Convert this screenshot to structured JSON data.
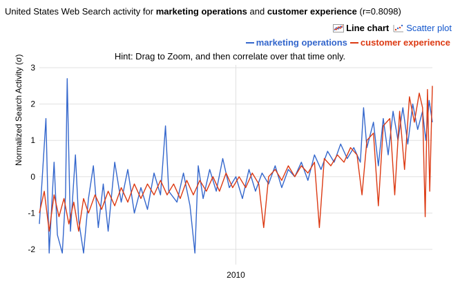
{
  "title": {
    "prefix": "United States Web Search activity for ",
    "term1": "marketing operations",
    "and": " and ",
    "term2": "customer experience",
    "suffix": " (r=0.8098)"
  },
  "view_links": {
    "line_chart": "Line chart",
    "scatter_plot": "Scatter plot"
  },
  "hint": "Hint: Drag to Zoom, and then correlate over that time only.",
  "colors": {
    "series1": "#3366cc",
    "series2": "#dc3912",
    "gridline": "#e0e0e0"
  },
  "chart_data": {
    "type": "line",
    "ylabel": "Normalized Search Activity (σ)",
    "ylim": [
      -2.2,
      3.1
    ],
    "y_ticks": [
      3,
      2,
      1,
      0,
      -1,
      -2
    ],
    "x_ticks": [
      {
        "label": "2010",
        "x": 2010.0
      }
    ],
    "xlim": [
      2004.0,
      2016.0
    ],
    "grid": true,
    "legend_position": "top-right",
    "series": [
      {
        "name": "marketing operations",
        "color": "#3366cc",
        "points": [
          [
            2004.0,
            -1.3
          ],
          [
            2004.2,
            1.6
          ],
          [
            2004.3,
            -2.1
          ],
          [
            2004.45,
            0.4
          ],
          [
            2004.55,
            -1.6
          ],
          [
            2004.7,
            -2.1
          ],
          [
            2004.8,
            -0.5
          ],
          [
            2004.85,
            2.7
          ],
          [
            2004.95,
            -1.5
          ],
          [
            2005.1,
            0.6
          ],
          [
            2005.2,
            -1.2
          ],
          [
            2005.35,
            -2.1
          ],
          [
            2005.5,
            -0.6
          ],
          [
            2005.65,
            0.3
          ],
          [
            2005.8,
            -1.4
          ],
          [
            2005.95,
            -0.2
          ],
          [
            2006.1,
            -1.5
          ],
          [
            2006.3,
            0.4
          ],
          [
            2006.5,
            -0.7
          ],
          [
            2006.7,
            0.2
          ],
          [
            2006.9,
            -1.0
          ],
          [
            2007.1,
            -0.3
          ],
          [
            2007.3,
            -0.9
          ],
          [
            2007.5,
            0.1
          ],
          [
            2007.7,
            -0.5
          ],
          [
            2007.85,
            1.4
          ],
          [
            2007.95,
            -0.4
          ],
          [
            2008.2,
            -0.7
          ],
          [
            2008.4,
            0.1
          ],
          [
            2008.6,
            -0.8
          ],
          [
            2008.75,
            -2.1
          ],
          [
            2008.85,
            0.3
          ],
          [
            2009.0,
            -0.6
          ],
          [
            2009.2,
            0.2
          ],
          [
            2009.4,
            -0.4
          ],
          [
            2009.6,
            0.5
          ],
          [
            2009.8,
            -0.3
          ],
          [
            2010.0,
            0.0
          ],
          [
            2010.2,
            -0.6
          ],
          [
            2010.4,
            0.2
          ],
          [
            2010.6,
            -0.4
          ],
          [
            2010.8,
            0.1
          ],
          [
            2011.0,
            -0.2
          ],
          [
            2011.2,
            0.3
          ],
          [
            2011.4,
            -0.3
          ],
          [
            2011.6,
            0.2
          ],
          [
            2011.8,
            0.0
          ],
          [
            2012.0,
            0.4
          ],
          [
            2012.2,
            -0.1
          ],
          [
            2012.4,
            0.6
          ],
          [
            2012.6,
            0.2
          ],
          [
            2012.8,
            0.7
          ],
          [
            2013.0,
            0.4
          ],
          [
            2013.2,
            0.9
          ],
          [
            2013.4,
            0.5
          ],
          [
            2013.6,
            0.8
          ],
          [
            2013.8,
            0.4
          ],
          [
            2013.9,
            1.9
          ],
          [
            2014.0,
            0.8
          ],
          [
            2014.2,
            1.5
          ],
          [
            2014.35,
            0.3
          ],
          [
            2014.5,
            1.6
          ],
          [
            2014.65,
            0.6
          ],
          [
            2014.8,
            1.8
          ],
          [
            2014.95,
            1.0
          ],
          [
            2015.1,
            1.9
          ],
          [
            2015.25,
            0.9
          ],
          [
            2015.4,
            2.0
          ],
          [
            2015.55,
            1.3
          ],
          [
            2015.7,
            1.8
          ],
          [
            2015.8,
            1.0
          ],
          [
            2015.9,
            2.1
          ],
          [
            2016.0,
            1.5
          ]
        ]
      },
      {
        "name": "customer experience",
        "color": "#dc3912",
        "points": [
          [
            2004.0,
            -1.0
          ],
          [
            2004.15,
            -0.4
          ],
          [
            2004.3,
            -1.5
          ],
          [
            2004.45,
            -0.5
          ],
          [
            2004.6,
            -1.1
          ],
          [
            2004.75,
            -0.6
          ],
          [
            2004.9,
            -1.3
          ],
          [
            2005.05,
            -0.7
          ],
          [
            2005.2,
            -1.5
          ],
          [
            2005.35,
            -0.6
          ],
          [
            2005.5,
            -1.0
          ],
          [
            2005.7,
            -0.5
          ],
          [
            2005.9,
            -0.9
          ],
          [
            2006.1,
            -0.4
          ],
          [
            2006.3,
            -0.8
          ],
          [
            2006.5,
            -0.3
          ],
          [
            2006.7,
            -0.7
          ],
          [
            2006.9,
            -0.2
          ],
          [
            2007.1,
            -0.6
          ],
          [
            2007.3,
            -0.2
          ],
          [
            2007.5,
            -0.5
          ],
          [
            2007.7,
            -0.1
          ],
          [
            2007.9,
            -0.5
          ],
          [
            2008.1,
            -0.2
          ],
          [
            2008.3,
            -0.6
          ],
          [
            2008.5,
            -0.1
          ],
          [
            2008.7,
            -0.5
          ],
          [
            2008.9,
            -0.1
          ],
          [
            2009.1,
            -0.4
          ],
          [
            2009.3,
            0.0
          ],
          [
            2009.5,
            -0.4
          ],
          [
            2009.7,
            0.1
          ],
          [
            2009.9,
            -0.3
          ],
          [
            2010.1,
            0.0
          ],
          [
            2010.3,
            -0.3
          ],
          [
            2010.5,
            0.1
          ],
          [
            2010.7,
            -0.2
          ],
          [
            2010.85,
            -1.4
          ],
          [
            2011.0,
            0.0
          ],
          [
            2011.2,
            0.2
          ],
          [
            2011.4,
            -0.1
          ],
          [
            2011.6,
            0.3
          ],
          [
            2011.8,
            0.0
          ],
          [
            2012.0,
            0.3
          ],
          [
            2012.2,
            0.1
          ],
          [
            2012.4,
            0.4
          ],
          [
            2012.55,
            -1.4
          ],
          [
            2012.7,
            0.5
          ],
          [
            2012.9,
            0.3
          ],
          [
            2013.1,
            0.6
          ],
          [
            2013.3,
            0.4
          ],
          [
            2013.5,
            0.8
          ],
          [
            2013.7,
            0.6
          ],
          [
            2013.85,
            -0.5
          ],
          [
            2014.0,
            1.0
          ],
          [
            2014.2,
            1.2
          ],
          [
            2014.35,
            -0.8
          ],
          [
            2014.5,
            1.4
          ],
          [
            2014.7,
            1.6
          ],
          [
            2014.85,
            -0.5
          ],
          [
            2015.0,
            1.8
          ],
          [
            2015.15,
            0.2
          ],
          [
            2015.3,
            2.2
          ],
          [
            2015.45,
            1.5
          ],
          [
            2015.6,
            2.3
          ],
          [
            2015.7,
            1.9
          ],
          [
            2015.78,
            -1.1
          ],
          [
            2015.85,
            2.4
          ],
          [
            2015.92,
            -0.4
          ],
          [
            2016.0,
            2.5
          ]
        ]
      }
    ]
  }
}
